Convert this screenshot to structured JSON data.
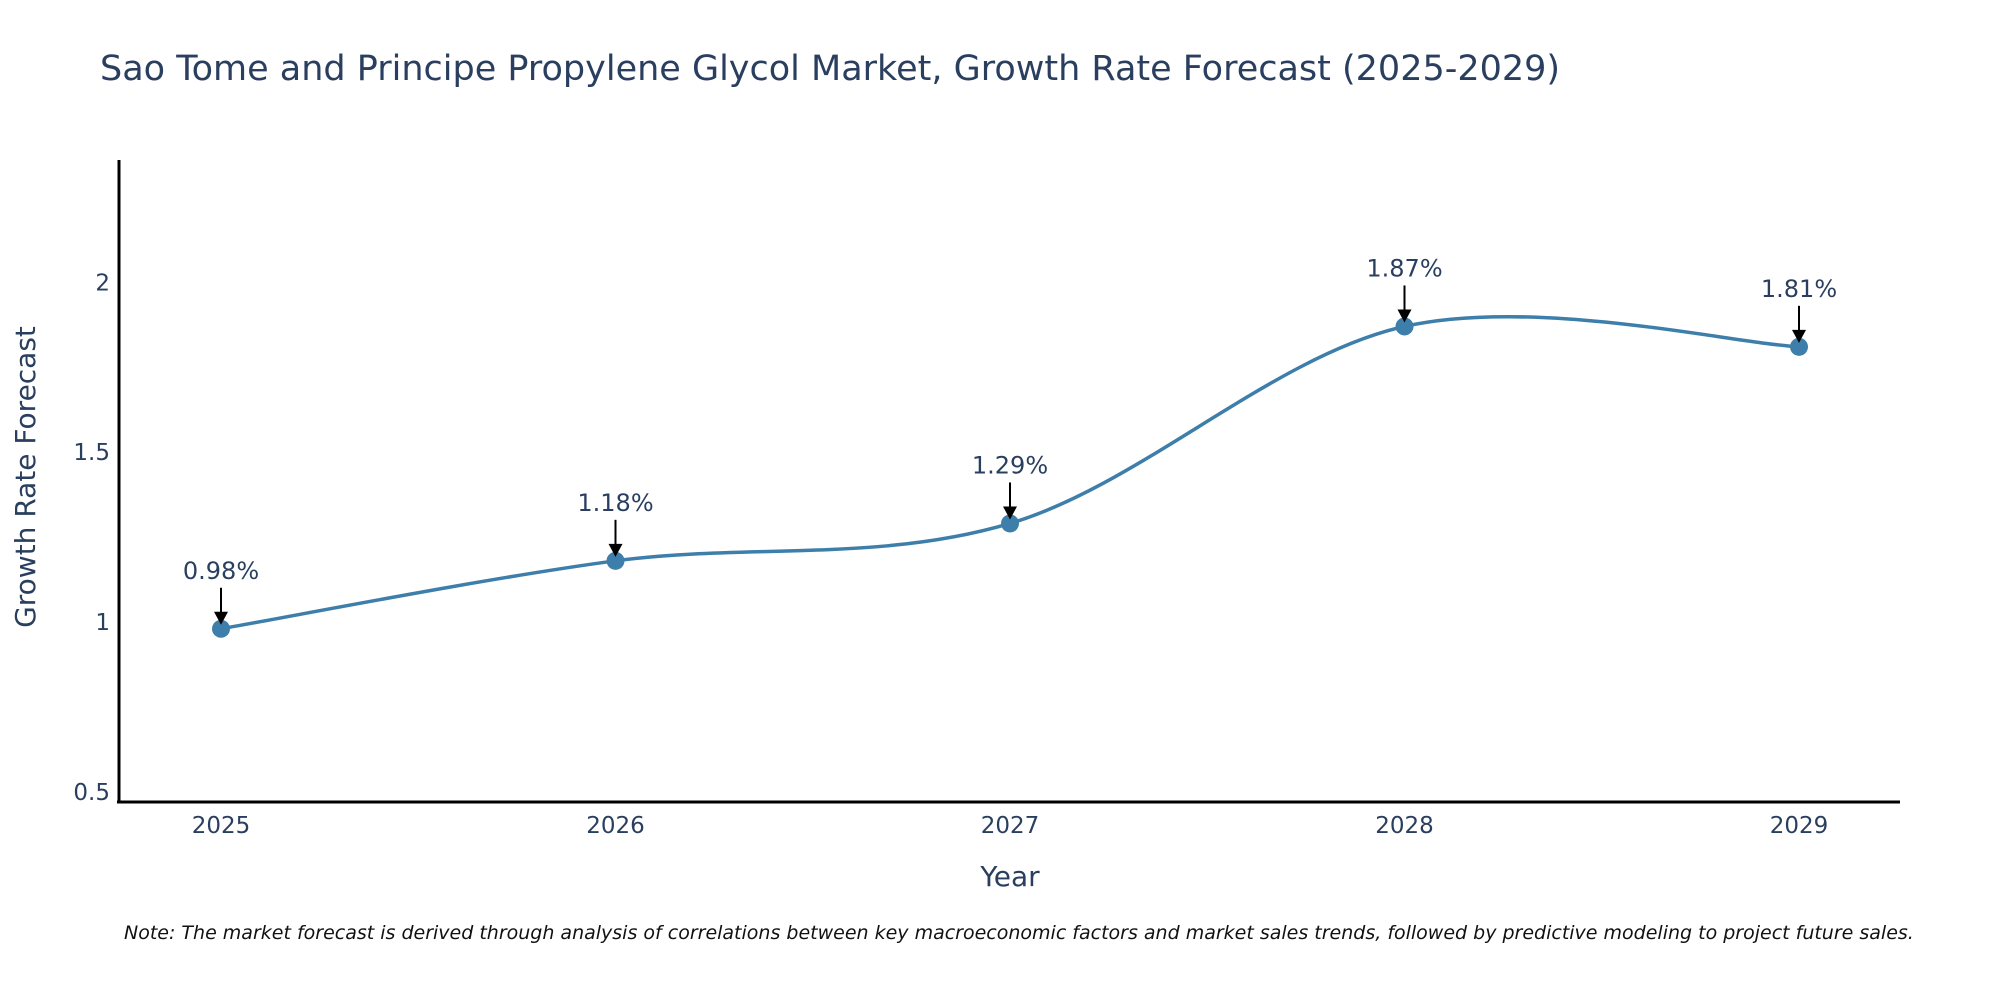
{
  "chart_data": {
    "type": "line",
    "title": "Sao Tome and Principe Propylene Glycol Market, Growth Rate Forecast (2025-2029)",
    "xlabel": "Year",
    "ylabel": "Growth Rate Forecast",
    "categories": [
      "2025",
      "2026",
      "2027",
      "2028",
      "2029"
    ],
    "values": [
      0.98,
      1.18,
      1.29,
      1.87,
      1.81
    ],
    "data_labels": [
      "0.98%",
      "1.18%",
      "1.29%",
      "1.87%",
      "1.81%"
    ],
    "yticks": [
      0.5,
      1,
      1.5,
      2
    ],
    "ytick_labels": [
      "0.5",
      "1",
      "1.5",
      "2"
    ],
    "ylim": [
      0.47,
      2.36
    ],
    "grid": false,
    "line_color": "#3d7eaa",
    "marker_color": "#3d7eaa",
    "note": "Note: The market forecast is derived through analysis of correlations between key macroeconomic factors and market sales trends, followed by predictive modeling to project future sales."
  }
}
